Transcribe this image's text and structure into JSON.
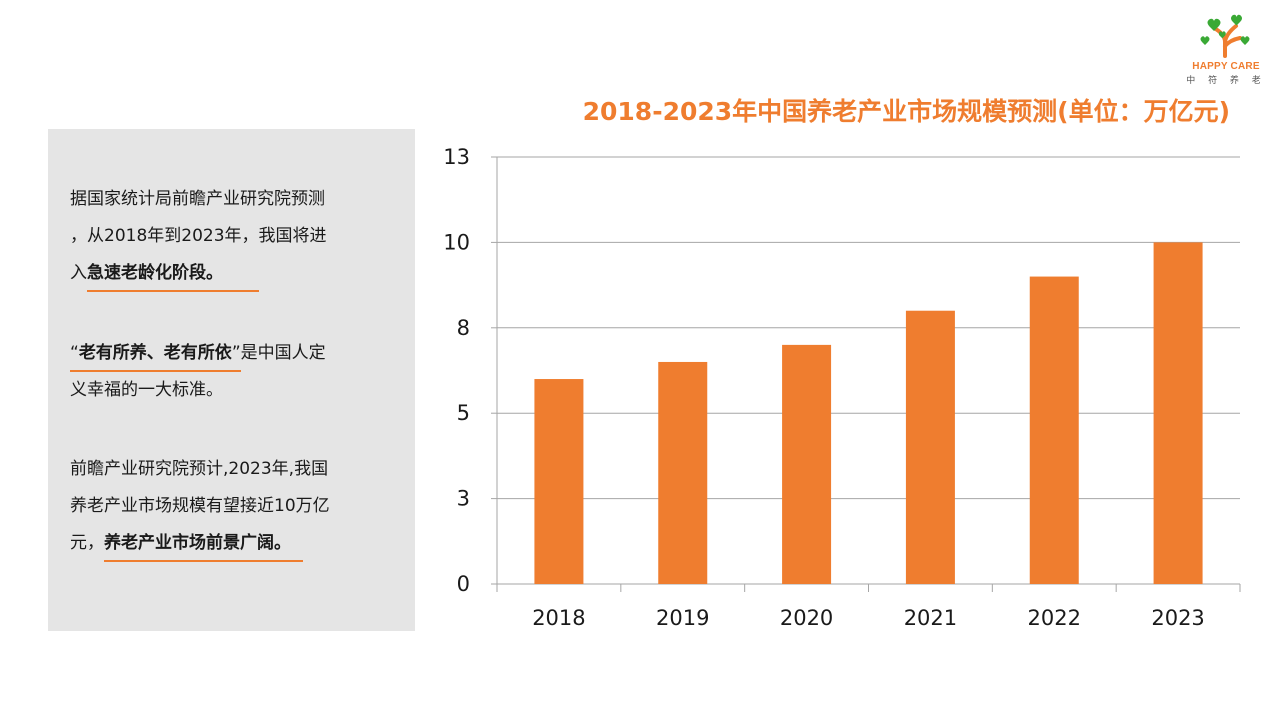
{
  "logo": {
    "brand_en": "HAPPY CARE",
    "brand_cn": "中 符 养 老",
    "icon": "tree-hearts-icon",
    "colors": {
      "heart_green": "#3aa935",
      "trunk_orange": "#ef7d2f"
    }
  },
  "accent_color": "#ef7d2f",
  "panel_color": "#e5e5e5",
  "text_panel": {
    "p1": {
      "line1": "据国家统计局前瞻产业研究院预测",
      "line2": "，从2018年到2023年，我国将进",
      "line3_pre": "入",
      "line3_em": "急速老龄化阶段",
      "line3_post": "。"
    },
    "p2": {
      "open_quote": "“",
      "em": "老有所养、老有所依",
      "close_quote": "”",
      "rest1": "是中国人定",
      "line2": "义幸福的一大标准。"
    },
    "p3": {
      "line1": "前瞻产业研究院预计,2023年,我国",
      "line2": "养老产业市场规模有望接近10万亿",
      "line3_pre": "元，",
      "line3_em": "养老产业市场前景广阔",
      "line3_post": "。"
    }
  },
  "chart_data": {
    "type": "bar",
    "title": "2018-2023年中国养老产业市场规模预测(单位：万亿元)",
    "categories": [
      "2018",
      "2019",
      "2020",
      "2021",
      "2022",
      "2023"
    ],
    "values": [
      6.0,
      6.5,
      7.0,
      8.0,
      9.0,
      10.0
    ],
    "ylim": [
      0,
      12.5
    ],
    "yticks": [
      0,
      2.5,
      5,
      7.5,
      10,
      12.5
    ],
    "ytick_labels": [
      "0",
      "3",
      "5",
      "8",
      "10",
      "13"
    ],
    "grid": true,
    "bar_color": "#ef7d2f",
    "grid_color": "#a6a6a6"
  }
}
